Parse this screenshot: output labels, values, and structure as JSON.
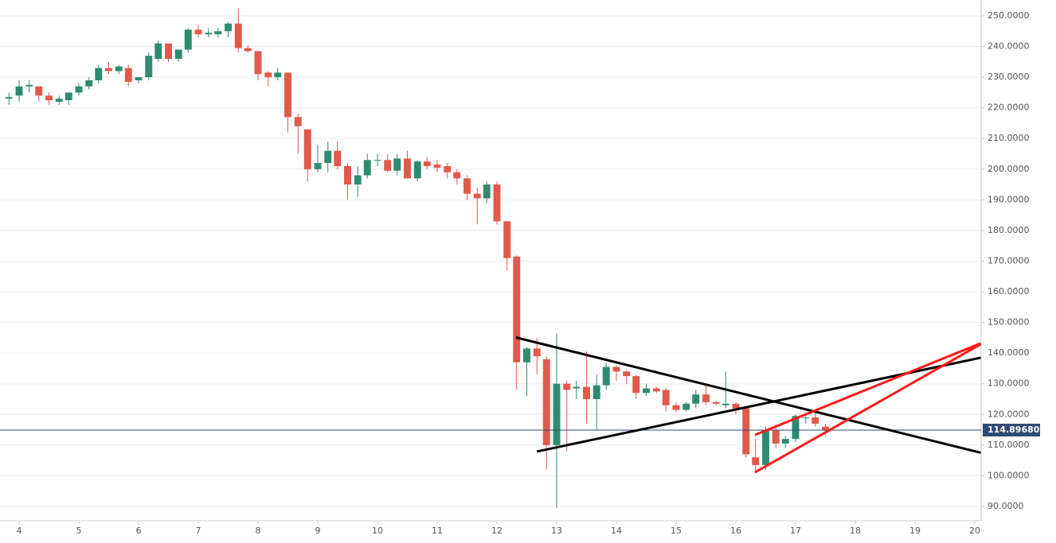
{
  "chart_data": {
    "type": "candlestick",
    "x": [
      3.83,
      4.0,
      4.17,
      4.33,
      4.5,
      4.67,
      4.83,
      5.0,
      5.17,
      5.33,
      5.5,
      5.67,
      5.83,
      6.0,
      6.17,
      6.33,
      6.5,
      6.67,
      6.83,
      7.0,
      7.17,
      7.33,
      7.5,
      7.67,
      7.83,
      8.0,
      8.17,
      8.33,
      8.5,
      8.67,
      8.83,
      9.0,
      9.17,
      9.33,
      9.5,
      9.67,
      9.83,
      10.0,
      10.17,
      10.33,
      10.5,
      10.67,
      10.83,
      11.0,
      11.17,
      11.33,
      11.5,
      11.67,
      11.83,
      12.0,
      12.17,
      12.33,
      12.5,
      12.67,
      12.83,
      13.0,
      13.17,
      13.33,
      13.5,
      13.67,
      13.83,
      14.0,
      14.17,
      14.33,
      14.5,
      14.67,
      14.83,
      15.0,
      15.17,
      15.33,
      15.5,
      15.67,
      15.83,
      16.0,
      16.17,
      16.33,
      16.5,
      16.67,
      16.83,
      17.0,
      17.17,
      17.33,
      17.5
    ],
    "open": [
      223,
      224,
      227,
      227,
      224,
      222,
      222.5,
      225,
      227,
      229,
      233,
      232,
      233,
      229,
      230,
      236,
      241,
      236,
      239,
      245.5,
      244,
      244,
      245,
      247.5,
      239.5,
      238.5,
      231.5,
      230,
      231.5,
      217,
      213,
      200,
      202,
      206,
      201,
      195,
      198,
      203,
      203,
      199.5,
      203.5,
      197,
      202.5,
      201.5,
      201,
      199,
      197,
      192,
      190.5,
      195,
      183,
      171.5,
      137,
      141.5,
      138,
      110,
      130,
      128.5,
      129,
      125,
      129.5,
      135.5,
      134,
      132.5,
      127,
      128.5,
      128,
      123,
      121.5,
      123.5,
      126.5,
      124,
      123,
      123.5,
      122,
      106,
      103.5,
      115,
      110.5,
      112,
      119,
      119,
      116
    ],
    "high": [
      225,
      229,
      229,
      227,
      225,
      224,
      225,
      228,
      230,
      234,
      235,
      234,
      234,
      230,
      238,
      242,
      241,
      239,
      246,
      247,
      246,
      246,
      248,
      252.5,
      240.5,
      238.5,
      232,
      233,
      231.5,
      218,
      213,
      208,
      209,
      209,
      202,
      201,
      205,
      205,
      205,
      205,
      206,
      203,
      204,
      203,
      202,
      200,
      198,
      194,
      196,
      196,
      183,
      172,
      142,
      145,
      139,
      146.5,
      131,
      131,
      140.5,
      133,
      137,
      136,
      134.5,
      133,
      130,
      129,
      128.5,
      124,
      124,
      128,
      130,
      124.5,
      134,
      124,
      122,
      112,
      116,
      116,
      113,
      120,
      120,
      121,
      117
    ],
    "low": [
      221,
      222,
      225,
      222,
      221,
      221,
      221,
      224,
      226,
      228,
      231,
      231,
      227,
      228,
      229,
      235,
      235,
      235,
      238,
      243,
      243,
      243,
      243,
      238,
      238,
      229,
      227,
      229,
      212,
      205,
      196,
      199,
      199,
      200,
      190,
      191,
      197,
      201,
      199,
      198,
      197,
      196,
      200,
      199,
      197,
      195,
      190,
      182,
      189,
      182,
      167,
      128,
      126,
      133,
      102,
      89.5,
      108,
      125,
      117,
      115,
      128,
      131,
      130,
      125,
      126,
      127,
      121,
      121,
      121,
      122,
      123,
      123,
      122,
      120,
      106,
      101,
      102,
      109,
      109,
      111,
      117,
      116,
      113
    ],
    "close": [
      223.5,
      227,
      227.5,
      224,
      222.5,
      223,
      225,
      227,
      229,
      233,
      232,
      233.5,
      228.5,
      230,
      237,
      241,
      236,
      239,
      245.5,
      244,
      244.5,
      245,
      247.5,
      239.5,
      238.5,
      231,
      230,
      231.5,
      217,
      214,
      200,
      202,
      206,
      201,
      195,
      198,
      203,
      203,
      199.5,
      203.5,
      197,
      202.5,
      201,
      200.5,
      199,
      197,
      192,
      190.5,
      195,
      183,
      171,
      137,
      141.5,
      139,
      110,
      130,
      128,
      129,
      125,
      129.5,
      135.5,
      134,
      132.5,
      127,
      128.5,
      127.5,
      123,
      121.5,
      123.5,
      126.5,
      124,
      123.5,
      123.5,
      122,
      107,
      103.5,
      115,
      110.5,
      112,
      119.5,
      119,
      117,
      115
    ],
    "up_color": "#2e8b70",
    "down_color": "#e0594a",
    "xlim": [
      3.68,
      20.107
    ],
    "ylim": [
      85.32,
      255.19
    ],
    "xticks": [
      4,
      5,
      6,
      7,
      8,
      9,
      10,
      11,
      12,
      13,
      14,
      15,
      16,
      17,
      18,
      19,
      20
    ],
    "yticks": [
      {
        "value": 90,
        "label": "90.0000"
      },
      {
        "value": 100,
        "label": "100.0000"
      },
      {
        "value": 110,
        "label": "110.0000"
      },
      {
        "value": 120,
        "label": "120.0000"
      },
      {
        "value": 130,
        "label": "130.0000"
      },
      {
        "value": 140,
        "label": "140.0000"
      },
      {
        "value": 150,
        "label": "150.0000"
      },
      {
        "value": 160,
        "label": "160.0000"
      },
      {
        "value": 170,
        "label": "170.0000"
      },
      {
        "value": 180,
        "label": "180.0000"
      },
      {
        "value": 190,
        "label": "190.0000"
      },
      {
        "value": 200,
        "label": "200.0000"
      },
      {
        "value": 210,
        "label": "210.0000"
      },
      {
        "value": 220,
        "label": "220.0000"
      },
      {
        "value": 230,
        "label": "230.0000"
      },
      {
        "value": 240,
        "label": "240.0000"
      },
      {
        "value": 250,
        "label": "250.0000"
      }
    ],
    "grid": true,
    "last_price": {
      "value": 114.8968,
      "label": "114.89680",
      "color": "#2f4a75"
    },
    "trendlines": [
      {
        "color": "#000000",
        "x": [
          12.32,
          20.1
        ],
        "y": [
          145.1,
          107.5
        ]
      },
      {
        "color": "#000000",
        "x": [
          12.67,
          20.1
        ],
        "y": [
          107.9,
          138.5
        ]
      },
      {
        "color": "#ff1a1a",
        "x": [
          16.32,
          20.1
        ],
        "y": [
          113.3,
          143.2
        ]
      },
      {
        "color": "#ff1a1a",
        "x": [
          16.32,
          20.1
        ],
        "y": [
          101.1,
          142.9
        ]
      }
    ]
  }
}
